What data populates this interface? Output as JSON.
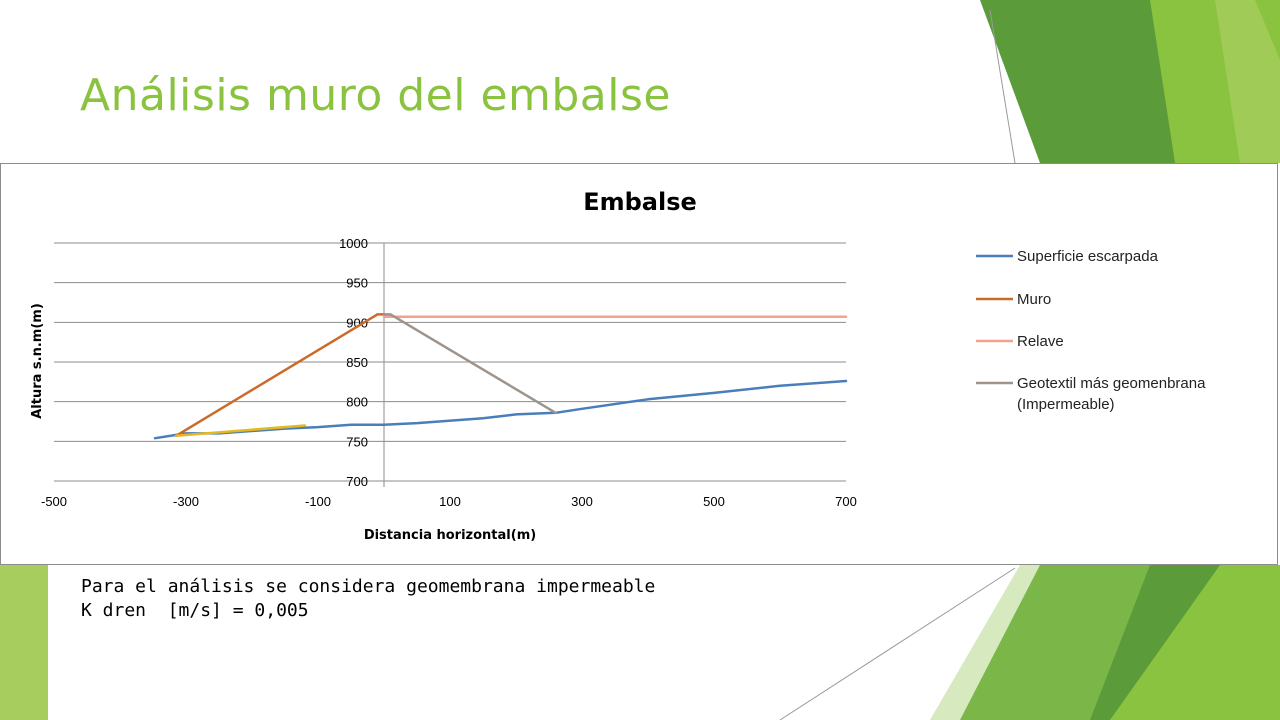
{
  "slide": {
    "title": "Análisis muro del embalse",
    "caption_lines": [
      "Para el análisis se considera geomembrana impermeable",
      "K dren  [m/s] = 0,005"
    ]
  },
  "theme": {
    "title_color": "#8ac33f",
    "accent_greens": [
      "#5b9b3a",
      "#8ac33f",
      "#7ab648",
      "#a6cd5e",
      "#d7e9bf"
    ]
  },
  "chart_data": {
    "type": "line",
    "title": "Embalse",
    "xlabel": "Distancia horizontal(m)",
    "ylabel": "Altura s.n.m(m)",
    "xlim": [
      -500,
      700
    ],
    "ylim": [
      700,
      1000
    ],
    "xticks": [
      -500,
      -300,
      -100,
      100,
      300,
      500,
      700
    ],
    "yticks": [
      700,
      750,
      800,
      850,
      900,
      950,
      1000
    ],
    "grid": "horizontal",
    "legend_position": "right",
    "series": [
      {
        "name": "Superficie escarpada",
        "color": "#4a7ebb",
        "points": [
          [
            -347,
            754
          ],
          [
            -300,
            760
          ],
          [
            -250,
            760
          ],
          [
            -150,
            766
          ],
          [
            -100,
            768
          ],
          [
            -50,
            771
          ],
          [
            0,
            771
          ],
          [
            50,
            773
          ],
          [
            150,
            779
          ],
          [
            200,
            784
          ],
          [
            260,
            786
          ],
          [
            300,
            791
          ],
          [
            400,
            803
          ],
          [
            500,
            811
          ],
          [
            600,
            820
          ],
          [
            700,
            826
          ]
        ]
      },
      {
        "name": "Muro",
        "color": "#cc6a2a",
        "points": [
          [
            -315,
            757
          ],
          [
            -10,
            910
          ],
          [
            0,
            910
          ]
        ]
      },
      {
        "name": "Relave",
        "color": "#f2a28f",
        "points": [
          [
            0,
            907
          ],
          [
            700,
            907
          ]
        ]
      },
      {
        "name": "Geotextil más geomenbrana (Impermeable)",
        "color": "#9e948b",
        "points": [
          [
            0,
            910
          ],
          [
            10,
            910
          ],
          [
            260,
            786
          ]
        ]
      },
      {
        "color": "#e6b81e",
        "points": [
          [
            -315,
            757
          ],
          [
            -120,
            770
          ]
        ]
      }
    ]
  }
}
